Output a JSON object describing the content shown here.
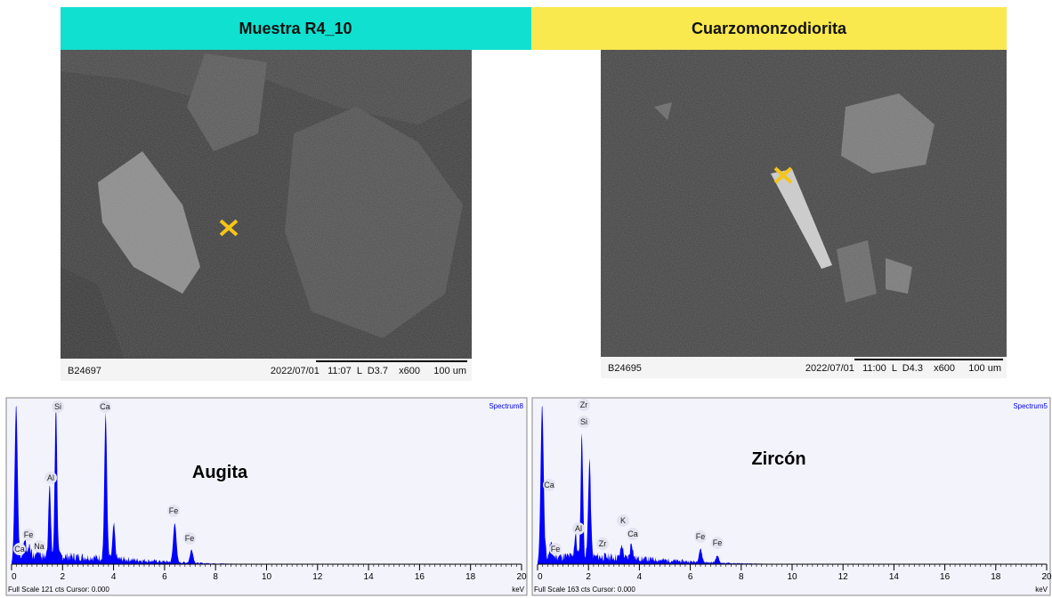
{
  "header": {
    "left": "Muestra R4_10",
    "right": "Cuarzomonzodiorita"
  },
  "images": [
    {
      "id": "B24697",
      "info": "2022/07/01   11:07  L  D3.7    x600     100 um"
    },
    {
      "id": "B24695",
      "info": "2022/07/01   11:00  L  D4.3    x600     100 um"
    }
  ],
  "spectra": [
    {
      "title": "Spectrum8",
      "mineral": "Augita",
      "footer": "Full Scale 121 cts Cursor: 0.000",
      "unit": "keV",
      "peaks": [
        "Si",
        "Ca",
        "Al",
        "Fe",
        "Ca",
        "Na",
        "Fe",
        "Fe"
      ],
      "xticks": [
        0,
        2,
        4,
        6,
        8,
        10,
        12,
        14,
        16,
        18,
        20
      ]
    },
    {
      "title": "Spectrum5",
      "mineral": "Zircón",
      "footer": "Full Scale 163 cts Cursor: 0.000",
      "unit": "keV",
      "peaks": [
        "Zr",
        "Si",
        "Ca",
        "Al",
        "Zr",
        "K",
        "Ca",
        "Fe",
        "Fe",
        "Fe"
      ],
      "xticks": [
        0,
        2,
        4,
        6,
        8,
        10,
        12,
        14,
        16,
        18,
        20
      ]
    }
  ]
}
